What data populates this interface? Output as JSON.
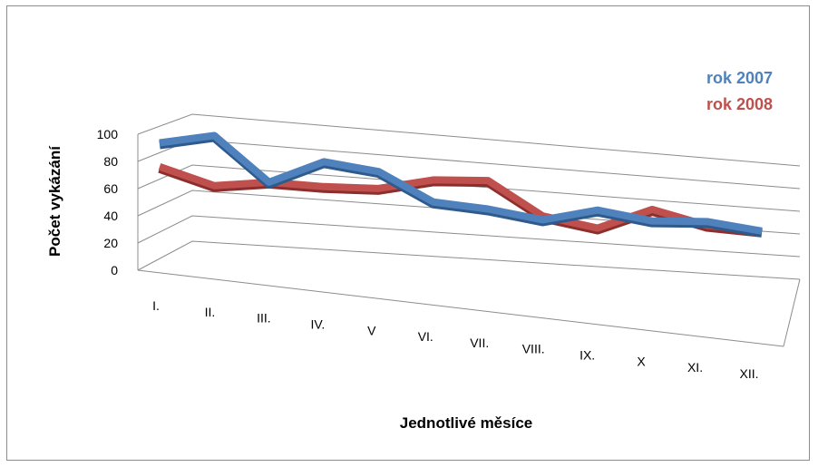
{
  "chart_data": {
    "type": "line",
    "categories": [
      "I.",
      "II.",
      "III.",
      "IV.",
      "V",
      "VI.",
      "VII.",
      "VIII.",
      "IX.",
      "X",
      "XI.",
      "XII."
    ],
    "series": [
      {
        "name": "rok 2007",
        "color": "#4f81bd",
        "values": [
          88,
          97,
          65,
          84,
          80,
          60,
          58,
          53,
          64,
          59,
          62,
          58
        ]
      },
      {
        "name": "rok 2008",
        "color": "#c0504d",
        "values": [
          70,
          59,
          65,
          65,
          67,
          77,
          80,
          56,
          50,
          68,
          59,
          58
        ]
      }
    ],
    "ylabel": "Počet vykázání",
    "xlabel": "Jednotlivé měsíce",
    "yticks": [
      "0",
      "20",
      "40",
      "60",
      "80",
      "100"
    ],
    "ylim": [
      0,
      100
    ],
    "grid": true,
    "legend_position": "top-right",
    "style": "3d-perspective"
  }
}
